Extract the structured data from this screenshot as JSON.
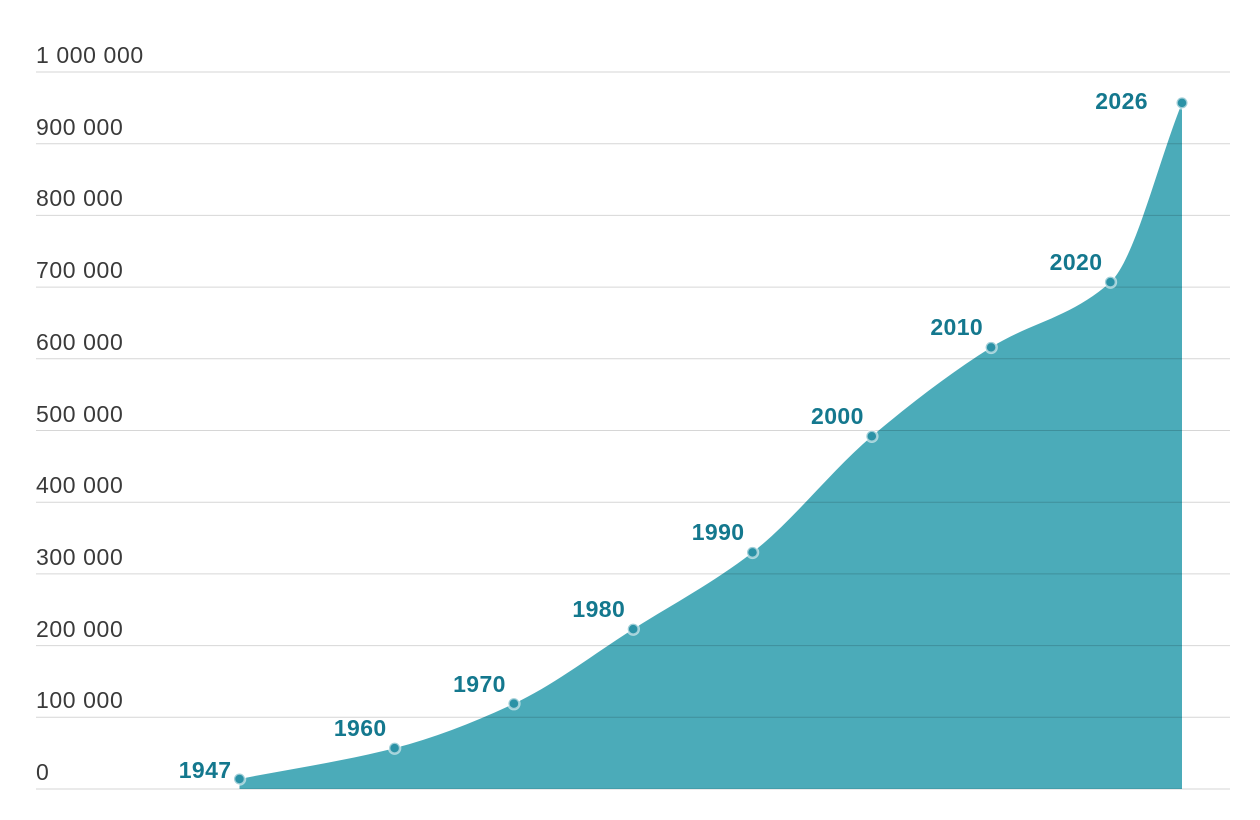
{
  "chart_data": {
    "type": "area",
    "title": "",
    "xlabel": "",
    "ylabel": "",
    "xlim": [
      1947,
      2026
    ],
    "ylim": [
      0,
      1000000
    ],
    "grid": true,
    "legend_position": "none",
    "number_format_example": "1 000 000",
    "y_ticks": [
      {
        "value": 1000000,
        "label": "1 000 000"
      },
      {
        "value": 900000,
        "label": "900 000"
      },
      {
        "value": 800000,
        "label": "800 000"
      },
      {
        "value": 700000,
        "label": "700 000"
      },
      {
        "value": 600000,
        "label": "600 000"
      },
      {
        "value": 500000,
        "label": "500 000"
      },
      {
        "value": 400000,
        "label": "400 000"
      },
      {
        "value": 300000,
        "label": "300 000"
      },
      {
        "value": 200000,
        "label": "200 000"
      },
      {
        "value": 100000,
        "label": "100 000"
      },
      {
        "value": 0,
        "label": "0"
      }
    ],
    "points": [
      {
        "year": 1947,
        "label": "1947",
        "value": 14000
      },
      {
        "year": 1960,
        "label": "1960",
        "value": 57000
      },
      {
        "year": 1970,
        "label": "1970",
        "value": 119000
      },
      {
        "year": 1980,
        "label": "1980",
        "value": 223000
      },
      {
        "year": 1990,
        "label": "1990",
        "value": 330000
      },
      {
        "year": 2000,
        "label": "2000",
        "value": 492000
      },
      {
        "year": 2010,
        "label": "2010",
        "value": 616000
      },
      {
        "year": 2020,
        "label": "2020",
        "value": 707000
      },
      {
        "year": 2026,
        "label": "2026",
        "value": 957000
      }
    ],
    "colors": {
      "background": "#ffffff",
      "area_fill": "#4BABB9",
      "marker_fill": "#2B92A6",
      "marker_ring": "rgba(255,255,255,0.55)",
      "point_label": "#14788E",
      "tick_label": "#3a3a3a",
      "gridline": "rgba(0,0,0,0.16)"
    }
  }
}
